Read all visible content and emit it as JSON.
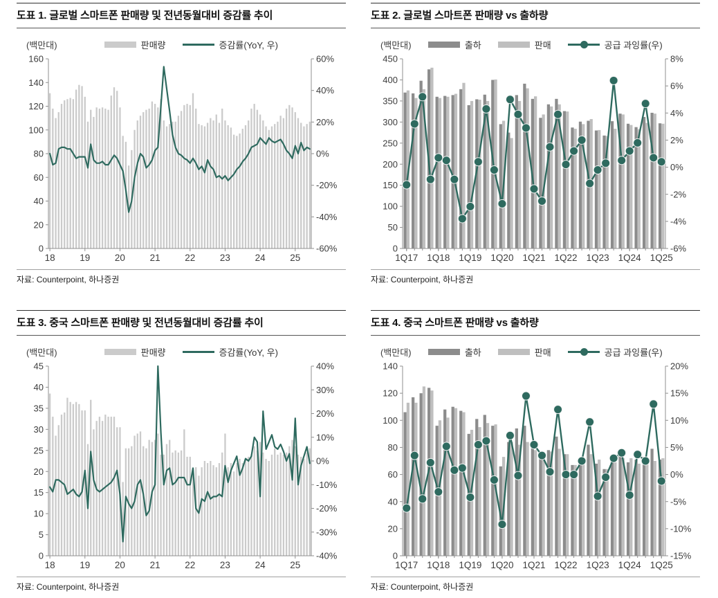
{
  "page": {
    "background": "#ffffff"
  },
  "colors": {
    "bar_light": "#cbcbcb",
    "bar_light2": "#bfbfbf",
    "bar_dark": "#8c8c8c",
    "line_teal": "#2e6a5f",
    "axis_line": "#8f8f8f",
    "axis_text": "#3d3d3d",
    "title_text": "#111111"
  },
  "chart_data": [
    {
      "id": "chart1",
      "type": "bar-line",
      "title": "도표 1. 글로벌 스마트폰 판매량 및 전년동월대비 증감률 추이",
      "unit_label": "(백만대)",
      "source": "자료: Counterpoint, 하나증권",
      "n": 90,
      "x_labels": [
        "18",
        "19",
        "20",
        "21",
        "22",
        "23",
        "24",
        "25"
      ],
      "x_label_indices": [
        0,
        12,
        24,
        36,
        48,
        60,
        72,
        84
      ],
      "minor_ticks": false,
      "left_axis": {
        "min": 0,
        "max": 160,
        "step": 20,
        "suffix": ""
      },
      "right_axis": {
        "min": -60,
        "max": 60,
        "step": 20,
        "suffix": "%"
      },
      "bar_series": [
        {
          "name": "판매량",
          "color_key": "bar_light",
          "values": [
            131,
            118,
            110,
            115,
            122,
            125,
            126,
            127,
            126,
            134,
            138,
            137,
            128,
            107,
            117,
            111,
            119,
            118,
            119,
            118,
            117,
            129,
            136,
            133,
            119,
            95,
            90,
            70,
            83,
            100,
            108,
            112,
            115,
            117,
            118,
            124,
            122,
            119,
            126,
            108,
            103,
            105,
            107,
            107,
            112,
            116,
            121,
            122,
            121,
            131,
            118,
            105,
            104,
            103,
            106,
            110,
            108,
            113,
            106,
            118,
            108,
            104,
            102,
            96,
            95,
            97,
            101,
            104,
            108,
            118,
            122,
            117,
            113,
            108,
            103,
            100,
            103,
            105,
            107,
            112,
            110,
            118,
            121,
            119,
            115,
            110,
            106,
            103,
            105,
            107
          ]
        }
      ],
      "line_series": [
        {
          "name": "증감률(YoY, 우)",
          "color_key": "line_teal",
          "axis": "right",
          "marker": false,
          "values": [
            0,
            -7,
            -6,
            3,
            4,
            4,
            3,
            3,
            0,
            -3,
            -2,
            -2,
            -2,
            -9,
            6,
            -4,
            -6,
            -6,
            -5,
            -7,
            -7,
            -4,
            -1,
            -3,
            -7,
            -11,
            -23,
            -37,
            -30,
            -15,
            -6,
            0,
            -2,
            -9,
            -7,
            -4,
            2,
            4,
            30,
            55,
            41,
            27,
            12,
            4,
            0,
            -1,
            -3,
            -4,
            -6,
            -3,
            -6,
            -10,
            -8,
            -12,
            -4,
            -8,
            -10,
            -15,
            -14,
            -16,
            -14,
            -17,
            -15,
            -13,
            -10,
            -8,
            -5,
            -3,
            0,
            4,
            5,
            6,
            10,
            8,
            6,
            10,
            8,
            7,
            8,
            9,
            6,
            2,
            0,
            -3,
            5,
            0,
            7,
            2,
            4,
            3
          ]
        }
      ],
      "legend": [
        {
          "label": "판매량",
          "swatch": "bar",
          "color_key": "bar_light"
        },
        {
          "label": "증감률(YoY, 우)",
          "swatch": "line",
          "color_key": "line_teal"
        }
      ]
    },
    {
      "id": "chart2",
      "type": "bar-line",
      "title": "도표 2. 글로벌 스마트폰 판매량 vs 출하량",
      "unit_label": "(백만대)",
      "source": "자료: Counterpoint, 하나증권",
      "n": 33,
      "x_labels": [
        "1Q17",
        "1Q18",
        "1Q19",
        "1Q20",
        "1Q21",
        "1Q22",
        "1Q23",
        "1Q24",
        "1Q25"
      ],
      "x_label_indices": [
        0,
        4,
        8,
        12,
        16,
        20,
        24,
        28,
        32
      ],
      "minor_ticks": true,
      "left_axis": {
        "min": 0,
        "max": 450,
        "step": 50,
        "suffix": ""
      },
      "right_axis": {
        "min": -6,
        "max": 8,
        "step": 2,
        "suffix": "%"
      },
      "bar_series": [
        {
          "name": "출하",
          "color_key": "bar_dark",
          "values": [
            370,
            368,
            398,
            425,
            360,
            362,
            364,
            378,
            340,
            354,
            365,
            400,
            295,
            275,
            364,
            391,
            355,
            310,
            342,
            355,
            326,
            287,
            301,
            303,
            280,
            268,
            302,
            320,
            296,
            288,
            312,
            322,
            297
          ]
        },
        {
          "name": "판매",
          "color_key": "bar_light2",
          "values": [
            375,
            357,
            378,
            429,
            357,
            360,
            367,
            393,
            350,
            353,
            350,
            401,
            303,
            262,
            350,
            380,
            361,
            318,
            337,
            342,
            325,
            284,
            295,
            307,
            281,
            267,
            284,
            318,
            293,
            283,
            298,
            320,
            296
          ]
        }
      ],
      "line_series": [
        {
          "name": "공급 과잉률(우)",
          "color_key": "line_teal",
          "axis": "right",
          "marker": true,
          "values": [
            -1.3,
            3.2,
            5.2,
            -0.9,
            0.7,
            0.5,
            -0.9,
            -3.8,
            -2.9,
            0.4,
            4.3,
            -0.2,
            -2.7,
            5.0,
            3.9,
            2.9,
            -1.6,
            -2.5,
            1.5,
            3.9,
            0.2,
            1.2,
            2.0,
            -1.2,
            -0.2,
            0.3,
            6.4,
            0.5,
            1.2,
            1.8,
            4.7,
            0.7,
            0.4
          ]
        }
      ],
      "legend": [
        {
          "label": "출하",
          "swatch": "bar",
          "color_key": "bar_dark"
        },
        {
          "label": "판매",
          "swatch": "bar",
          "color_key": "bar_light2"
        },
        {
          "label": "공급 과잉률(우)",
          "swatch": "line-dot",
          "color_key": "line_teal"
        }
      ]
    },
    {
      "id": "chart3",
      "type": "bar-line",
      "title": "도표 3. 중국 스마트폰 판매량 및 전년동월대비 증감률 추이",
      "unit_label": "(백만대)",
      "source": "자료: Counterpoint, 하나증권",
      "n": 90,
      "x_labels": [
        "18",
        "19",
        "20",
        "21",
        "22",
        "23",
        "24",
        "25"
      ],
      "x_label_indices": [
        0,
        12,
        24,
        36,
        48,
        60,
        72,
        84
      ],
      "minor_ticks": false,
      "left_axis": {
        "min": 0,
        "max": 45,
        "step": 5,
        "suffix": ""
      },
      "right_axis": {
        "min": -40,
        "max": 40,
        "step": 10,
        "suffix": "%"
      },
      "bar_series": [
        {
          "name": "판매량",
          "color_key": "bar_light",
          "values": [
            38.5,
            33,
            28.5,
            31,
            33.5,
            34,
            37.5,
            36.5,
            36,
            36.5,
            36,
            34.5,
            34.5,
            26.5,
            37,
            30,
            32,
            33,
            32,
            33.5,
            33,
            33,
            33,
            30.5,
            30.5,
            17.5,
            25.5,
            25.5,
            26,
            28.5,
            29,
            29.5,
            26,
            25.5,
            27.5,
            27,
            27.5,
            29,
            24,
            24,
            26.5,
            27.5,
            24.5,
            25,
            24.5,
            25,
            30,
            23.5,
            23.5,
            20.5,
            21,
            19,
            21,
            22.5,
            22,
            22.5,
            21.5,
            21,
            22,
            24.5,
            29,
            21,
            22,
            20,
            22,
            23,
            22,
            23,
            23.5,
            24,
            26,
            25,
            27,
            24.5,
            23,
            22.5,
            24,
            25.5,
            24,
            24.5,
            24,
            24.5,
            26,
            27.5,
            26,
            24,
            23.5,
            23,
            24.5,
            25.5
          ]
        }
      ],
      "line_series": [
        {
          "name": "증감률(YoY, 우)",
          "color_key": "line_teal",
          "axis": "right",
          "marker": false,
          "values": [
            -11,
            -13,
            -8,
            -8,
            -9,
            -10,
            -14,
            -13,
            -12,
            -14,
            -15,
            -13,
            -4,
            -20,
            4,
            -8,
            -12,
            -13,
            -12,
            -11,
            -10,
            -9,
            -7,
            -4,
            -14,
            -34,
            -15,
            -18,
            -20,
            -17,
            -10,
            -8,
            -14,
            -23,
            -21,
            -13,
            -10,
            40,
            12,
            -10,
            -4,
            -3,
            -10,
            -9,
            -7,
            -7,
            -7,
            -10,
            -10,
            -3,
            -20,
            -22,
            -16,
            -17,
            -13,
            -16,
            -15,
            -15,
            -14,
            -15,
            -2,
            -9,
            -4,
            -1,
            2,
            -6,
            -3,
            1,
            0,
            2,
            10,
            8,
            -15,
            21,
            5,
            8,
            11,
            6,
            5,
            7,
            4,
            0,
            3,
            -8,
            18,
            -10,
            -2,
            2,
            6,
            -1
          ]
        }
      ],
      "legend": [
        {
          "label": "판매량",
          "swatch": "bar",
          "color_key": "bar_light"
        },
        {
          "label": "증감률(YoY, 우)",
          "swatch": "line",
          "color_key": "line_teal"
        }
      ]
    },
    {
      "id": "chart4",
      "type": "bar-line",
      "title": "도표 4. 중국 스마트폰 판매량 vs 출하량",
      "unit_label": "(백만대)",
      "source": "자료: Counterpoint, 하나증권",
      "n": 33,
      "x_labels": [
        "1Q17",
        "1Q18",
        "1Q19",
        "1Q20",
        "1Q21",
        "1Q22",
        "1Q23",
        "1Q24",
        "1Q25"
      ],
      "x_label_indices": [
        0,
        4,
        8,
        12,
        16,
        20,
        24,
        28,
        32
      ],
      "minor_ticks": true,
      "left_axis": {
        "min": 0,
        "max": 140,
        "step": 20,
        "suffix": ""
      },
      "right_axis": {
        "min": -15,
        "max": 20,
        "step": 5,
        "suffix": "%"
      },
      "bar_series": [
        {
          "name": "출하",
          "color_key": "bar_dark",
          "values": [
            106,
            117,
            120,
            124,
            96,
            108,
            110,
            107,
            90,
            101,
            104,
            96,
            66,
            84,
            94,
            96,
            82,
            75,
            78,
            88,
            75,
            67,
            70,
            82,
            68,
            64,
            71,
            75,
            69,
            71,
            73,
            79,
            71
          ]
        },
        {
          "name": "판매",
          "color_key": "bar_light2",
          "values": [
            113,
            113,
            125,
            122,
            100,
            102,
            109,
            106,
            93,
            95,
            98,
            97,
            73,
            84,
            82,
            84,
            78,
            72,
            77,
            79,
            75,
            67,
            68,
            75,
            71,
            64,
            69,
            72,
            72,
            68,
            71,
            70,
            72
          ]
        }
      ],
      "line_series": [
        {
          "name": "공급 과잉률(우)",
          "color_key": "line_teal",
          "axis": "right",
          "marker": true,
          "values": [
            -6.2,
            3.5,
            -4.5,
            2.2,
            -3.2,
            5.2,
            0.8,
            1.2,
            -4.2,
            5.5,
            6.2,
            -1.0,
            -9.2,
            7.2,
            -0.2,
            14.5,
            5.5,
            3.5,
            0.5,
            12.0,
            0.0,
            0.0,
            2.5,
            9.7,
            -4.0,
            -0.5,
            3.0,
            4.0,
            -3.8,
            3.7,
            2.5,
            13.0,
            -1.2
          ]
        }
      ],
      "legend": [
        {
          "label": "출하",
          "swatch": "bar",
          "color_key": "bar_dark"
        },
        {
          "label": "판매",
          "swatch": "bar",
          "color_key": "bar_light2"
        },
        {
          "label": "공급 과잉률(우)",
          "swatch": "line-dot",
          "color_key": "line_teal"
        }
      ]
    }
  ]
}
